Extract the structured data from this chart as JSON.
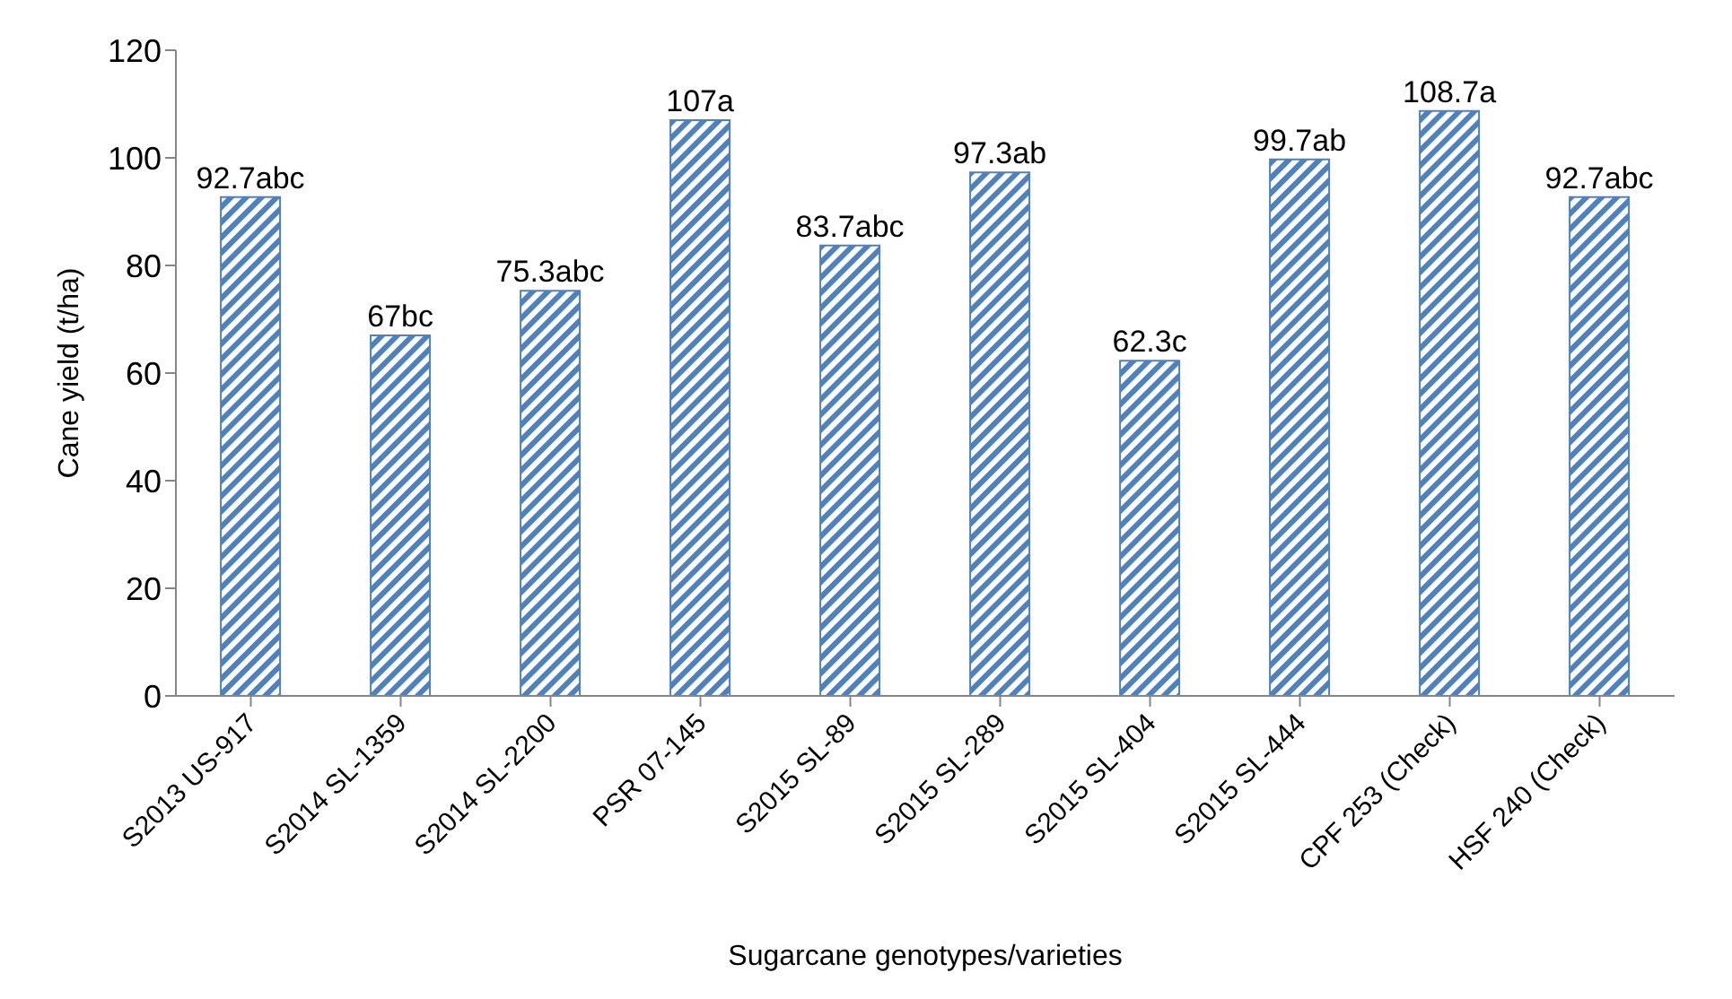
{
  "chart_data": {
    "type": "bar",
    "xlabel": "Sugarcane genotypes/varieties",
    "ylabel": "Cane yield (t/ha)",
    "categories": [
      "S2013 US-917",
      "S2014 SL-1359",
      "S2014 SL-2200",
      "PSR 07-145",
      "S2015 SL-89",
      "S2015 SL-289",
      "S2015 SL-404",
      "S2015 SL-444",
      "CPF 253 (Check)",
      "HSF 240 (Check)"
    ],
    "values": [
      92.7,
      67,
      75.3,
      107,
      83.7,
      97.3,
      62.3,
      99.7,
      108.7,
      92.7
    ],
    "value_labels": [
      "92.7abc",
      "67bc",
      "75.3abc",
      "107a",
      "83.7abc",
      "97.3ab",
      "62.3c",
      "99.7ab",
      "108.7a",
      "92.7abc"
    ],
    "color": "#4f81bd",
    "ylim": [
      0,
      120
    ],
    "yticks": [
      0,
      20,
      40,
      60,
      80,
      100,
      120
    ]
  }
}
